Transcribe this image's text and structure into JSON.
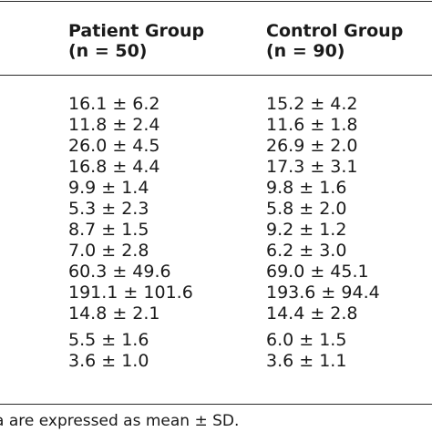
{
  "table": {
    "columns": [
      {
        "title": "Patient Group",
        "subtitle": "(n = 50)"
      },
      {
        "title": "Control Group",
        "subtitle": "(n = 90)"
      }
    ],
    "rows": [
      [
        "16.1 ± 6.2",
        "15.2 ± 4.2"
      ],
      [
        "11.8 ± 2.4",
        "11.6 ± 1.8"
      ],
      [
        "26.0 ± 4.5",
        "26.9 ± 2.0"
      ],
      [
        "16.8 ± 4.4",
        "17.3 ± 3.1"
      ],
      [
        "9.9 ± 1.4",
        "9.8 ± 1.6"
      ],
      [
        "5.3 ± 2.3",
        "5.8 ± 2.0"
      ],
      [
        "8.7 ± 1.5",
        "9.2 ± 1.2"
      ],
      [
        "7.0 ± 2.8",
        "6.2 ± 3.0"
      ],
      [
        "60.3 ± 49.6",
        "69.0 ± 45.1"
      ],
      [
        "191.1 ± 101.6",
        "193.6 ± 94.4"
      ],
      [
        "14.8 ± 2.1",
        "14.4 ± 2.8"
      ],
      [
        "5.5 ± 1.6",
        "6.0 ± 1.5"
      ],
      [
        "3.6 ± 1.0",
        "3.6 ± 1.1"
      ]
    ],
    "footnote": "a are expressed as mean ± SD."
  }
}
